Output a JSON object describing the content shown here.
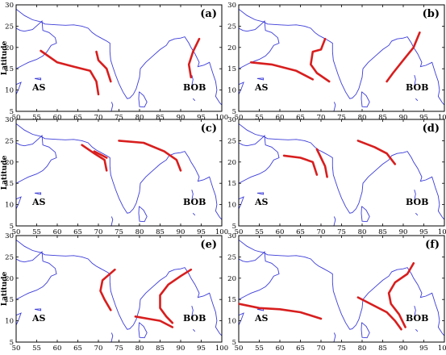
{
  "figure": {
    "xlabel": "Longitude",
    "ylabel": "Latitude",
    "region_labels": [
      "AS",
      "BOB"
    ]
  },
  "colors": {
    "coast": "#3b3bd9",
    "track": "#d81e1e",
    "frame": "#000000"
  },
  "chart_data": [
    {
      "type": "line",
      "panel": "(a)",
      "xlim": [
        50,
        100
      ],
      "ylim": [
        5,
        30
      ],
      "xticks": [
        50,
        55,
        60,
        65,
        70,
        75,
        80,
        85,
        90,
        95,
        100
      ],
      "yticks": [
        5,
        10,
        15,
        20,
        25,
        30
      ],
      "series": [
        {
          "points": [
            [
              56,
              19.2
            ],
            [
              60,
              16.5
            ],
            [
              64,
              15.5
            ],
            [
              68,
              14.5
            ],
            [
              69.5,
              12
            ],
            [
              70,
              9
            ]
          ]
        },
        {
          "points": [
            [
              69.5,
              19
            ],
            [
              70,
              17
            ],
            [
              72,
              15
            ],
            [
              73,
              12
            ]
          ]
        },
        {
          "points": [
            [
              94.5,
              22
            ],
            [
              93,
              19
            ],
            [
              92,
              16
            ],
            [
              92.5,
              13
            ]
          ]
        }
      ]
    },
    {
      "type": "line",
      "panel": "(b)",
      "xlim": [
        50,
        100
      ],
      "ylim": [
        5,
        30
      ],
      "xticks": [
        50,
        55,
        60,
        65,
        70,
        75,
        80,
        85,
        90,
        95,
        100
      ],
      "yticks": [
        5,
        10,
        15,
        20,
        25,
        30
      ],
      "series": [
        {
          "points": [
            [
              53,
              16.5
            ],
            [
              58,
              16
            ],
            [
              64,
              14.5
            ],
            [
              68,
              12.5
            ]
          ]
        },
        {
          "points": [
            [
              71,
              22
            ],
            [
              70,
              19.5
            ],
            [
              68,
              19
            ],
            [
              67.5,
              16
            ],
            [
              69,
              14
            ],
            [
              72,
              12
            ]
          ]
        },
        {
          "points": [
            [
              94,
              23.5
            ],
            [
              92.5,
              20
            ],
            [
              90,
              17
            ],
            [
              87.5,
              14
            ],
            [
              86,
              12
            ]
          ]
        }
      ]
    },
    {
      "type": "line",
      "panel": "(c)",
      "xlim": [
        50,
        100
      ],
      "ylim": [
        5,
        30
      ],
      "xticks": [
        50,
        55,
        60,
        65,
        70,
        75,
        80,
        85,
        90,
        95,
        100
      ],
      "yticks": [
        5,
        10,
        15,
        20,
        25,
        30
      ],
      "series": [
        {
          "points": [
            [
              66,
              24
            ],
            [
              69,
              22
            ],
            [
              71.5,
              20.5
            ],
            [
              72,
              18
            ]
          ]
        },
        {
          "points": [
            [
              69,
              22.5
            ],
            [
              72,
              21
            ]
          ]
        },
        {
          "points": [
            [
              75,
              25
            ],
            [
              81,
              24.5
            ],
            [
              86,
              22.5
            ],
            [
              89,
              20.5
            ],
            [
              90,
              18
            ]
          ]
        }
      ]
    },
    {
      "type": "line",
      "panel": "(d)",
      "xlim": [
        50,
        100
      ],
      "ylim": [
        5,
        30
      ],
      "xticks": [
        50,
        55,
        60,
        65,
        70,
        75,
        80,
        85,
        90,
        95,
        100
      ],
      "yticks": [
        5,
        10,
        15,
        20,
        25,
        30
      ],
      "series": [
        {
          "points": [
            [
              61,
              21.5
            ],
            [
              65,
              21
            ],
            [
              68,
              20
            ],
            [
              69,
              17
            ]
          ]
        },
        {
          "points": [
            [
              69,
              23
            ],
            [
              70,
              21
            ],
            [
              71,
              19
            ],
            [
              71.5,
              16.5
            ]
          ]
        },
        {
          "points": [
            [
              79,
              25
            ],
            [
              83,
              23.5
            ],
            [
              86,
              22
            ],
            [
              88,
              19.5
            ]
          ]
        }
      ]
    },
    {
      "type": "line",
      "panel": "(e)",
      "xlim": [
        50,
        100
      ],
      "ylim": [
        5,
        30
      ],
      "xticks": [
        50,
        55,
        60,
        65,
        70,
        75,
        80,
        85,
        90,
        95,
        100
      ],
      "yticks": [
        5,
        10,
        15,
        20,
        25,
        30
      ],
      "series": [
        {
          "points": [
            [
              74,
              22
            ],
            [
              71,
              19.5
            ],
            [
              70.5,
              17
            ],
            [
              71.5,
              15
            ],
            [
              73,
              12.5
            ]
          ]
        },
        {
          "points": [
            [
              79,
              11
            ],
            [
              82,
              10.5
            ],
            [
              85,
              10
            ],
            [
              88,
              8.5
            ]
          ]
        },
        {
          "points": [
            [
              92.5,
              22
            ],
            [
              90,
              20.5
            ],
            [
              87,
              18.5
            ],
            [
              85,
              16
            ],
            [
              85,
              13
            ],
            [
              86.5,
              11
            ],
            [
              88,
              9.5
            ]
          ]
        }
      ]
    },
    {
      "type": "line",
      "panel": "(f)",
      "xlim": [
        50,
        100
      ],
      "ylim": [
        5,
        30
      ],
      "xticks": [
        50,
        55,
        60,
        65,
        70,
        75,
        80,
        85,
        90,
        95,
        100
      ],
      "yticks": [
        5,
        10,
        15,
        20,
        25,
        30
      ],
      "series": [
        {
          "points": [
            [
              50,
              14
            ],
            [
              55,
              13
            ],
            [
              60,
              12.7
            ],
            [
              65,
              12
            ],
            [
              70,
              10.5
            ]
          ]
        },
        {
          "points": [
            [
              79,
              15.5
            ],
            [
              82,
              14
            ],
            [
              86,
              12
            ],
            [
              88,
              10
            ],
            [
              89.5,
              8
            ]
          ]
        },
        {
          "points": [
            [
              92.5,
              23.5
            ],
            [
              91,
              21
            ],
            [
              88,
              19
            ],
            [
              86.5,
              16.5
            ],
            [
              87,
              14
            ],
            [
              89,
              11.5
            ],
            [
              90.5,
              8.5
            ]
          ]
        }
      ]
    }
  ]
}
